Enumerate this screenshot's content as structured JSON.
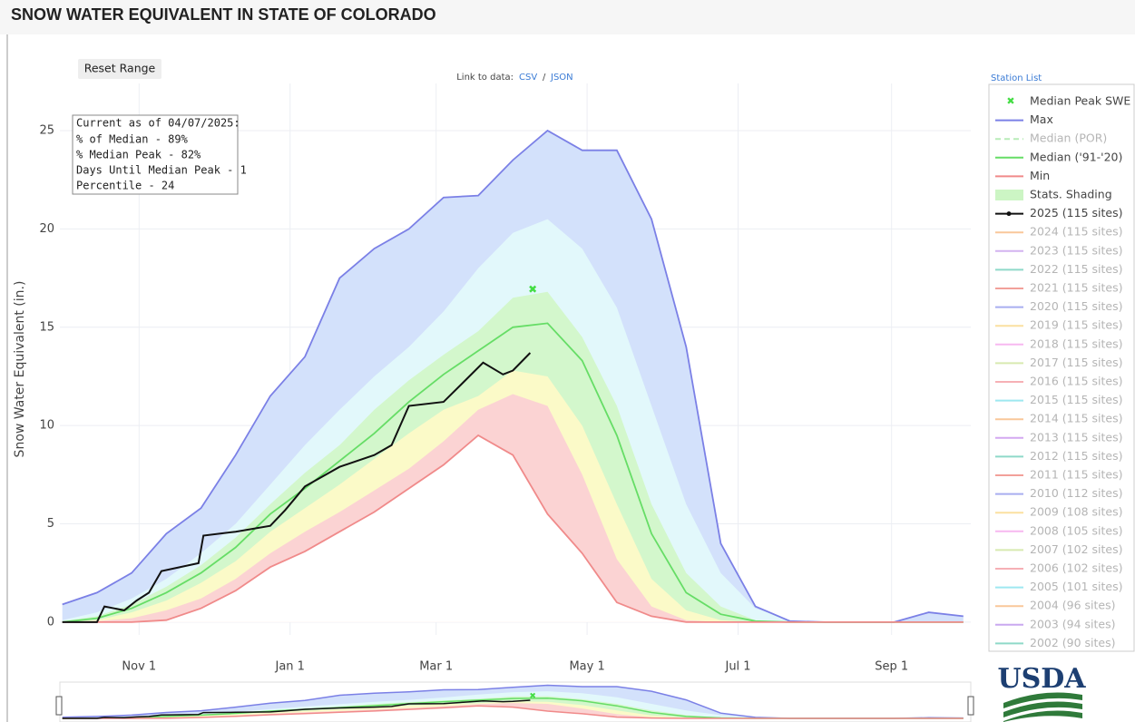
{
  "title": "SNOW WATER EQUIVALENT IN STATE OF COLORADO",
  "reset_button": "Reset Range",
  "links": {
    "label": "Link to data:",
    "csv": "CSV",
    "separator": "/",
    "json": "JSON"
  },
  "station_list": "Station List",
  "logo": "USDA",
  "info_box": [
    "Current as of 04/07/2025:",
    "% of Median - 89%",
    "% Median Peak - 82%",
    "Days Until Median Peak - 1",
    "Percentile - 24"
  ],
  "chart_data": {
    "type": "line",
    "ylabel": "Snow Water Equivalent (in.)",
    "x": [
      0,
      14,
      28,
      42,
      56,
      70,
      84,
      98,
      112,
      126,
      140,
      154,
      168,
      182,
      196,
      210,
      224,
      238,
      252,
      266,
      280,
      294,
      308,
      322,
      336,
      350,
      364
    ],
    "xlim": [
      -1,
      367
    ],
    "xticks": [
      {
        "value": 31,
        "label": "Nov 1"
      },
      {
        "value": 92,
        "label": "Jan 1"
      },
      {
        "value": 151,
        "label": "Mar 1"
      },
      {
        "value": 212,
        "label": "May 1"
      },
      {
        "value": 273,
        "label": "Jul 1"
      },
      {
        "value": 335,
        "label": "Sep 1"
      }
    ],
    "ylim": [
      -0.65,
      27.4
    ],
    "yticks": [
      0,
      5,
      10,
      15,
      20,
      25
    ],
    "grid": true,
    "series": [
      {
        "name": "Max",
        "color": "#7b80e6",
        "values": [
          0.9,
          1.5,
          2.5,
          4.5,
          5.8,
          8.5,
          11.5,
          13.5,
          17.5,
          19,
          20,
          21.6,
          21.7,
          23.5,
          25,
          24,
          24,
          20.5,
          14,
          4,
          0.8,
          0.05,
          0,
          0,
          0,
          0.5,
          0.3
        ]
      },
      {
        "name": "Median ('91-'20)",
        "color": "#66dd66",
        "values": [
          0,
          0.2,
          0.7,
          1.5,
          2.5,
          3.8,
          5.5,
          6.8,
          8.2,
          9.6,
          11.2,
          12.6,
          13.8,
          15,
          15.2,
          13.3,
          9.5,
          4.5,
          1.5,
          0.4,
          0.05,
          0,
          0,
          0,
          0,
          0,
          0
        ]
      },
      {
        "name": "Min",
        "color": "#f08a8a",
        "values": [
          0,
          0,
          0,
          0.1,
          0.7,
          1.6,
          2.8,
          3.6,
          4.6,
          5.6,
          6.8,
          8,
          9.5,
          8.5,
          5.5,
          3.5,
          1,
          0.3,
          0,
          0,
          0,
          0,
          0,
          0,
          0,
          0,
          0
        ]
      },
      {
        "name": "2025 (115 sites)",
        "color": "#111111",
        "x": [
          0,
          14,
          17,
          25,
          30,
          35,
          40,
          55,
          57,
          70,
          84,
          90,
          98,
          112,
          126,
          133,
          140,
          154,
          162,
          170,
          178,
          182,
          189
        ],
        "values": [
          0,
          0,
          0.8,
          0.6,
          1.1,
          1.5,
          2.6,
          3.0,
          4.4,
          4.6,
          4.9,
          5.7,
          6.9,
          7.9,
          8.5,
          9,
          11,
          11.2,
          12.2,
          13.2,
          12.6,
          12.8,
          13.7
        ]
      }
    ],
    "shading": {
      "name": "Stats. Shading",
      "color": "#ccf5c4",
      "max_fill": "#d3e1fb",
      "min_fill": "#ffffff",
      "levels": [
        {
          "color": "#e2f8fb",
          "values": [
            0.1,
            0.5,
            1.2,
            2.2,
            3.5,
            5,
            7,
            9,
            10.8,
            12.5,
            14,
            15.8,
            18,
            19.8,
            20.5,
            19,
            16,
            11,
            6,
            2.5,
            0.7,
            0.1,
            0,
            0,
            0,
            0,
            0
          ]
        },
        {
          "color": "#d3f7cc",
          "values": [
            0.05,
            0.3,
            0.9,
            1.8,
            2.9,
            4.3,
            6,
            7.6,
            9,
            10.8,
            12.3,
            13.6,
            14.8,
            16.5,
            16.8,
            14.5,
            11,
            6,
            2.5,
            0.8,
            0.1,
            0,
            0,
            0,
            0,
            0,
            0
          ]
        },
        {
          "color": "#fbfac8",
          "values": [
            0,
            0.1,
            0.5,
            1.1,
            2,
            3.1,
            4.6,
            5.8,
            7,
            8.3,
            9.6,
            10.8,
            11.5,
            12.8,
            12.5,
            10,
            6,
            2.2,
            0.6,
            0.1,
            0,
            0,
            0,
            0,
            0,
            0,
            0
          ]
        },
        {
          "color": "#fbd3d3",
          "values": [
            0,
            0.05,
            0.2,
            0.6,
            1.2,
            2.2,
            3.5,
            4.6,
            5.6,
            6.7,
            7.8,
            9.2,
            10.8,
            11.6,
            11,
            7.5,
            3.2,
            0.8,
            0.1,
            0,
            0,
            0,
            0,
            0,
            0,
            0,
            0
          ]
        }
      ]
    },
    "peak": {
      "name": "Median Peak SWE",
      "color": "#44dd44",
      "x": 190,
      "y": 16.9
    },
    "hidden_series": [
      {
        "name": "Median (POR)",
        "color": "#b8ecb8",
        "dash": true
      },
      {
        "name": "2024 (115 sites)",
        "color": "#f9c79a"
      },
      {
        "name": "2023 (115 sites)",
        "color": "#d3b3f0"
      },
      {
        "name": "2022 (115 sites)",
        "color": "#8fd9c9"
      },
      {
        "name": "2021 (115 sites)",
        "color": "#f2a09a"
      },
      {
        "name": "2020 (115 sites)",
        "color": "#a9aef0"
      },
      {
        "name": "2019 (115 sites)",
        "color": "#fbe0a0"
      },
      {
        "name": "2018 (115 sites)",
        "color": "#f7b8f0"
      },
      {
        "name": "2017 (115 sites)",
        "color": "#d8eab0"
      },
      {
        "name": "2016 (115 sites)",
        "color": "#f6b0b5"
      },
      {
        "name": "2015 (115 sites)",
        "color": "#9ee8f0"
      },
      {
        "name": "2014 (115 sites)",
        "color": "#f9c79a"
      },
      {
        "name": "2013 (115 sites)",
        "color": "#d3a8f0"
      },
      {
        "name": "2012 (115 sites)",
        "color": "#8fd9c9"
      },
      {
        "name": "2011 (115 sites)",
        "color": "#f2a09a"
      },
      {
        "name": "2010 (112 sites)",
        "color": "#a9aef0"
      },
      {
        "name": "2009 (108 sites)",
        "color": "#fbe0a0"
      },
      {
        "name": "2008 (105 sites)",
        "color": "#f7b8f0"
      },
      {
        "name": "2007 (102 sites)",
        "color": "#d8eab0"
      },
      {
        "name": "2006 (102 sites)",
        "color": "#f6b0b5"
      },
      {
        "name": "2005 (101 sites)",
        "color": "#9ee8f0"
      },
      {
        "name": "2004 (96 sites)",
        "color": "#f9c79a"
      },
      {
        "name": "2003 (94 sites)",
        "color": "#c9a8f0"
      },
      {
        "name": "2002 (90 sites)",
        "color": "#8fd9c9"
      }
    ]
  }
}
